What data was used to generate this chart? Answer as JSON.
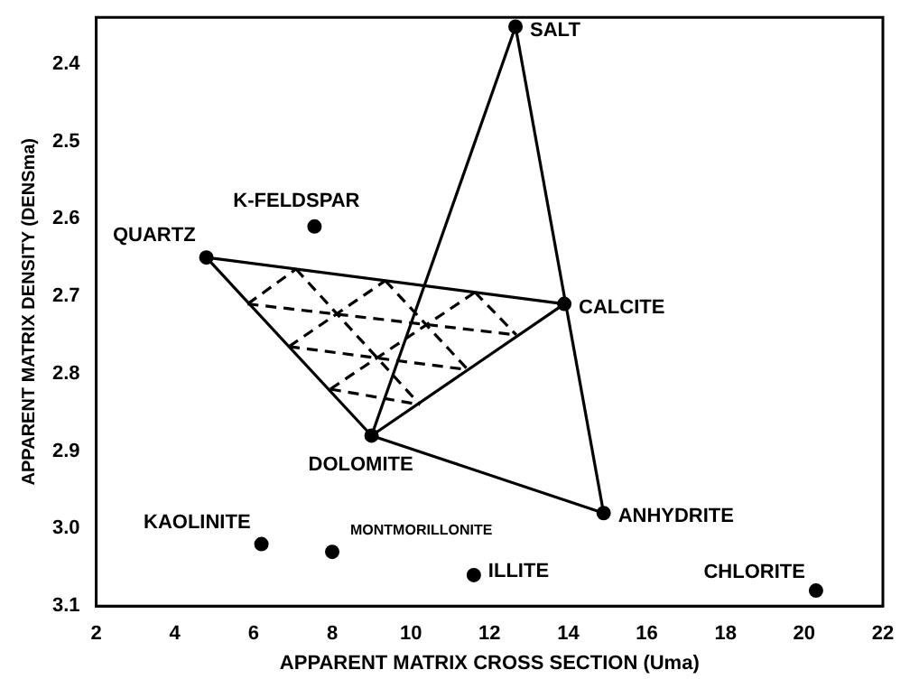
{
  "chart_data": {
    "type": "scatter",
    "xlabel": "APPARENT MATRIX CROSS SECTION (Uma)",
    "ylabel": "APPARENT MATRIX DENSITY (DENSma)",
    "xlim": [
      2,
      22
    ],
    "xticks": [
      2,
      4,
      6,
      8,
      10,
      12,
      14,
      16,
      18,
      20,
      22
    ],
    "ylim": [
      3.1,
      2.34
    ],
    "yticks": [
      2.4,
      2.5,
      2.6,
      2.7,
      2.8,
      2.9,
      {
        "value": 3,
        "label": "3.0"
      },
      3.1
    ],
    "grid": false,
    "legend": false,
    "series": [
      {
        "color": "#000000",
        "marker": "circle",
        "x": [
          12.66,
          4.8,
          7.55,
          13.9,
          9.0,
          14.9,
          6.2,
          8.0,
          11.6,
          20.3
        ],
        "values": [
          2.352,
          2.65,
          2.61,
          2.71,
          2.88,
          2.98,
          3.02,
          3.03,
          3.06,
          3.08
        ]
      },
      {
        "type": "line",
        "color": "#000000",
        "marker": "none",
        "line_style": "solid",
        "x": [
          4.8,
          13.9
        ],
        "values": [
          2.65,
          2.71
        ]
      },
      {
        "type": "line",
        "color": "#000000",
        "marker": "none",
        "line_style": "solid",
        "x": [
          9.0,
          13.9
        ],
        "values": [
          2.88,
          2.71
        ]
      },
      {
        "type": "line",
        "color": "#000000",
        "marker": "none",
        "line_style": "solid",
        "x": [
          4.8,
          9.0
        ],
        "values": [
          2.65,
          2.88
        ]
      },
      {
        "type": "line",
        "color": "#000000",
        "marker": "none",
        "line_style": "solid",
        "x": [
          9.0,
          12.66
        ],
        "values": [
          2.88,
          2.352
        ]
      },
      {
        "type": "line",
        "color": "#000000",
        "marker": "none",
        "line_style": "solid",
        "x": [
          9.0,
          14.9
        ],
        "values": [
          2.88,
          2.98
        ]
      },
      {
        "type": "line",
        "color": "#000000",
        "marker": "none",
        "line_style": "solid",
        "x": [
          12.66,
          14.9
        ],
        "values": [
          2.352,
          2.98
        ]
      },
      {
        "type": "line",
        "color": "#000000",
        "marker": "none",
        "line_style": "dashed",
        "x": [
          5.85,
          12.68
        ],
        "values": [
          2.71,
          2.75
        ]
      },
      {
        "type": "line",
        "color": "#000000",
        "marker": "none",
        "line_style": "dashed",
        "x": [
          6.9,
          11.45
        ],
        "values": [
          2.765,
          2.795
        ]
      },
      {
        "type": "line",
        "color": "#000000",
        "marker": "none",
        "line_style": "dashed",
        "x": [
          7.95,
          10.23
        ],
        "values": [
          2.82,
          2.84
        ]
      },
      {
        "type": "line",
        "color": "#000000",
        "marker": "none",
        "line_style": "dashed",
        "x": [
          7.08,
          10.23
        ],
        "values": [
          2.665,
          2.84
        ]
      },
      {
        "type": "line",
        "color": "#000000",
        "marker": "none",
        "line_style": "dashed",
        "x": [
          9.35,
          11.45
        ],
        "values": [
          2.68,
          2.795
        ]
      },
      {
        "type": "line",
        "color": "#000000",
        "marker": "none",
        "line_style": "dashed",
        "x": [
          11.63,
          12.68
        ],
        "values": [
          2.695,
          2.75
        ]
      },
      {
        "type": "line",
        "color": "#000000",
        "marker": "none",
        "line_style": "dashed",
        "x": [
          7.95,
          11.63
        ],
        "values": [
          2.82,
          2.695
        ]
      },
      {
        "type": "line",
        "color": "#000000",
        "marker": "none",
        "line_style": "dashed",
        "x": [
          6.9,
          9.35
        ],
        "values": [
          2.765,
          2.68
        ]
      },
      {
        "type": "line",
        "color": "#000000",
        "marker": "none",
        "line_style": "dashed",
        "x": [
          5.85,
          7.08
        ],
        "values": [
          2.71,
          2.665
        ]
      }
    ],
    "annotations": [
      {
        "text": "SALT",
        "x": 12.66,
        "y": 2.352
      },
      {
        "text": "QUARTZ",
        "x": 4.8,
        "y": 2.65
      },
      {
        "text": "K-FELDSPAR",
        "x": 7.55,
        "y": 2.61
      },
      {
        "text": "CALCITE",
        "x": 13.9,
        "y": 2.71
      },
      {
        "text": "DOLOMITE",
        "x": 9.0,
        "y": 2.88
      },
      {
        "text": "ANHYDRITE",
        "x": 14.9,
        "y": 2.98
      },
      {
        "text": "KAOLINITE",
        "x": 6.2,
        "y": 3.02
      },
      {
        "text": "MONTMORILLONITE",
        "x": 8.0,
        "y": 3.03
      },
      {
        "text": "ILLITE",
        "x": 11.6,
        "y": 3.06
      },
      {
        "text": "CHLORITE",
        "x": 20.3,
        "y": 3.08
      }
    ]
  }
}
